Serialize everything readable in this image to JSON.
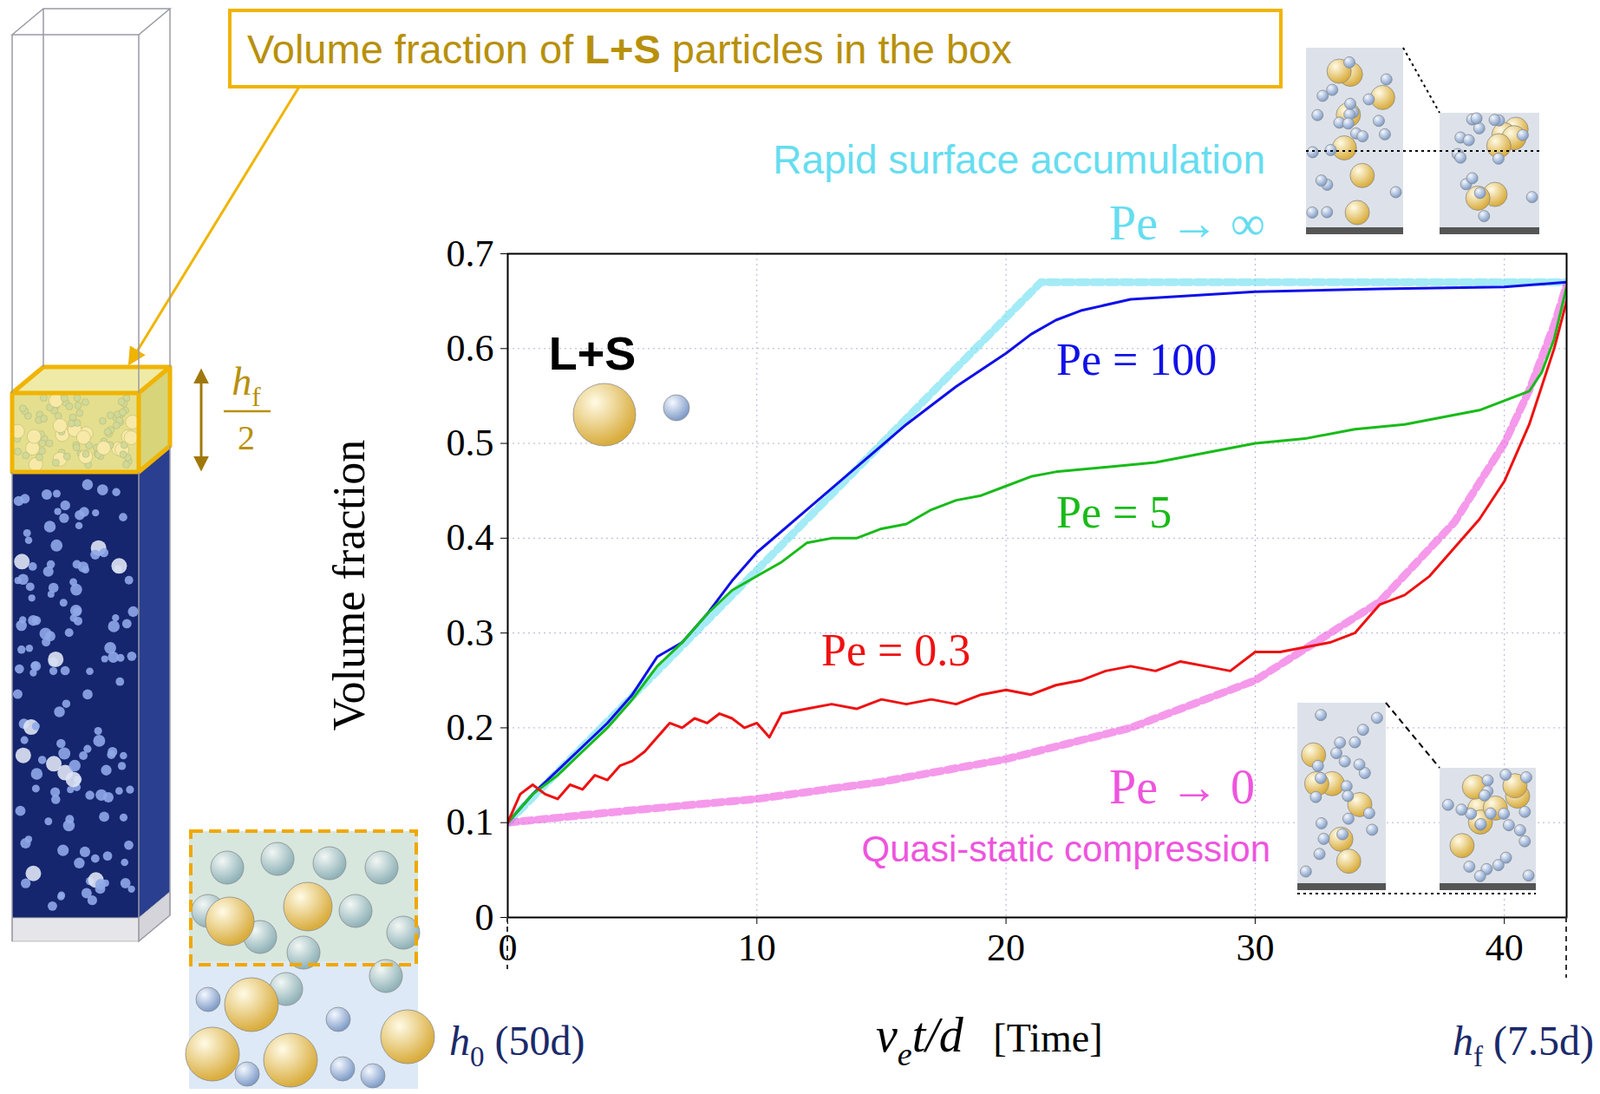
{
  "chart_data": {
    "type": "line",
    "xlabel": {
      "text": "v",
      "sub": "e",
      "after": "t/d",
      "unit": "[Time]"
    },
    "ylabel": "Volume fraction",
    "xlim": [
      0,
      42.5
    ],
    "xticks": [
      0,
      10,
      20,
      30,
      40
    ],
    "ylim": [
      0,
      0.7
    ],
    "yticks": [
      0,
      0.1,
      0.2,
      0.3,
      0.4,
      0.5,
      0.6,
      0.7
    ],
    "grid": true,
    "series": [
      {
        "name": "Pe → ∞",
        "note": "Rapid surface accumulation",
        "color": "#66ddf0",
        "line_style": "dashed",
        "x": [
          0,
          21.4,
          42.5
        ],
        "values": [
          0.1,
          0.67,
          0.67
        ]
      },
      {
        "name": "Pe → 0",
        "note": "Quasi-static compression",
        "color": "#ee55dd",
        "line_style": "dashed",
        "x": [
          0,
          5,
          10,
          15,
          20,
          25,
          30,
          35,
          38,
          40,
          41,
          42,
          42.5
        ],
        "values": [
          0.1,
          0.113,
          0.125,
          0.143,
          0.167,
          0.2,
          0.25,
          0.333,
          0.417,
          0.5,
          0.556,
          0.625,
          0.667
        ]
      },
      {
        "name": "Pe = 100",
        "color": "#1010e8",
        "line_style": "solid",
        "x": [
          0,
          1,
          2,
          3,
          4,
          5,
          6,
          7,
          8,
          9,
          10,
          12,
          14,
          16,
          18,
          20,
          21,
          22,
          23,
          25,
          30,
          35,
          40,
          42.5
        ],
        "values": [
          0.1,
          0.13,
          0.155,
          0.18,
          0.205,
          0.235,
          0.275,
          0.29,
          0.32,
          0.355,
          0.385,
          0.43,
          0.475,
          0.52,
          0.56,
          0.595,
          0.615,
          0.63,
          0.64,
          0.652,
          0.66,
          0.663,
          0.665,
          0.67
        ]
      },
      {
        "name": "Pe = 5",
        "color": "#18bb18",
        "line_style": "solid",
        "x": [
          0,
          1,
          2,
          3,
          4,
          5,
          6,
          7,
          8,
          9,
          10,
          11,
          12,
          13,
          14,
          15,
          16,
          17,
          18,
          19,
          20,
          21,
          22,
          24,
          26,
          28,
          30,
          32,
          34,
          36,
          38,
          39,
          40,
          41,
          41.5,
          42,
          42.5
        ],
        "values": [
          0.1,
          0.13,
          0.15,
          0.175,
          0.2,
          0.23,
          0.265,
          0.29,
          0.32,
          0.345,
          0.36,
          0.375,
          0.395,
          0.4,
          0.4,
          0.41,
          0.415,
          0.43,
          0.44,
          0.445,
          0.455,
          0.465,
          0.47,
          0.475,
          0.48,
          0.49,
          0.5,
          0.505,
          0.515,
          0.52,
          0.53,
          0.535,
          0.545,
          0.555,
          0.575,
          0.61,
          0.665
        ]
      },
      {
        "name": "Pe = 0.3",
        "color": "#ee1111",
        "line_style": "solid",
        "x": [
          0,
          0.5,
          1,
          1.5,
          2,
          2.5,
          3,
          3.5,
          4,
          4.5,
          5,
          5.5,
          6,
          6.5,
          7,
          7.5,
          8,
          8.5,
          9,
          9.5,
          10,
          10.5,
          11,
          12,
          13,
          14,
          15,
          16,
          17,
          18,
          19,
          20,
          21,
          22,
          23,
          24,
          25,
          26,
          27,
          28,
          29,
          30,
          31,
          32,
          33,
          34,
          35,
          36,
          37,
          38,
          39,
          40,
          41,
          42,
          42.5
        ],
        "values": [
          0.1,
          0.13,
          0.14,
          0.13,
          0.125,
          0.14,
          0.135,
          0.15,
          0.145,
          0.16,
          0.165,
          0.175,
          0.19,
          0.205,
          0.2,
          0.21,
          0.205,
          0.215,
          0.21,
          0.2,
          0.205,
          0.19,
          0.215,
          0.22,
          0.225,
          0.22,
          0.23,
          0.225,
          0.23,
          0.225,
          0.235,
          0.24,
          0.235,
          0.245,
          0.25,
          0.26,
          0.265,
          0.26,
          0.27,
          0.265,
          0.26,
          0.28,
          0.28,
          0.285,
          0.29,
          0.3,
          0.33,
          0.34,
          0.36,
          0.39,
          0.42,
          0.46,
          0.52,
          0.6,
          0.65
        ]
      }
    ],
    "annotations": {
      "callout": "Volume fraction of L+S particles in the box",
      "mixture": "L+S",
      "box_height": {
        "text": "h",
        "sub": "f",
        "denominator": "2"
      },
      "x_start": {
        "text": "h",
        "sub": "0",
        "after": " (50d)"
      },
      "x_end": {
        "text": "h",
        "sub": "f",
        "after": " (7.5d)"
      }
    }
  }
}
